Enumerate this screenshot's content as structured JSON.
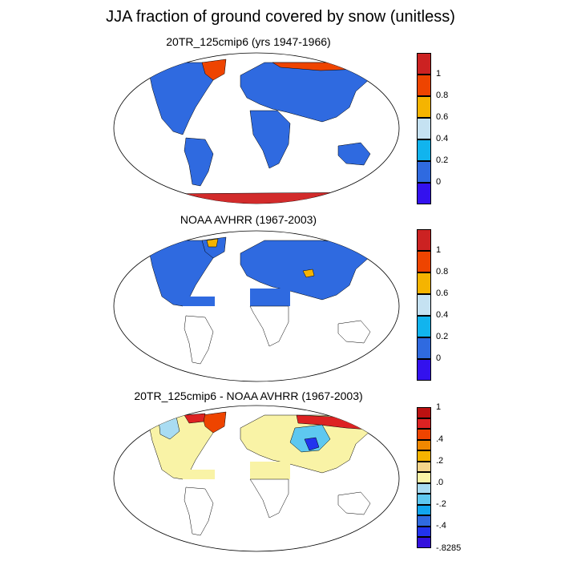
{
  "title": "JJA fraction of ground covered by snow (unitless)",
  "panels": [
    {
      "title": "20TR_125cmip6 (yrs 1947-1966)",
      "colorbar": {
        "colors": [
          "#3311ee",
          "#2f6ae0",
          "#11b4ee",
          "#c5e2f2",
          "#f5b400",
          "#ee4400",
          "#cc2222"
        ],
        "labels": [
          "0",
          "0.2",
          "0.4",
          "0.6",
          "0.8",
          "1"
        ]
      }
    },
    {
      "title": "NOAA AVHRR (1967-2003)",
      "colorbar": {
        "colors": [
          "#3311ee",
          "#2f6ae0",
          "#11b4ee",
          "#c5e2f2",
          "#f5b400",
          "#ee4400",
          "#cc2222"
        ],
        "labels": [
          "0",
          "0.2",
          "0.4",
          "0.6",
          "0.8",
          "1"
        ]
      }
    },
    {
      "title": "20TR_125cmip6 - NOAA AVHRR (1967-2003)",
      "colorbar": {
        "colors": [
          "#3311dd",
          "#2233ee",
          "#2f6ae0",
          "#11a6ee",
          "#5ec8f0",
          "#a9dcf2",
          "#f9f3a6",
          "#f5d58a",
          "#f5b400",
          "#f08800",
          "#ee4400",
          "#dd2222",
          "#bb1111"
        ],
        "labels": [
          "-.8285",
          "-.4",
          "-.2",
          ".0",
          ".2",
          ".4",
          "1"
        ]
      }
    }
  ],
  "colors": {
    "ocean": "#ffffff",
    "land_low": "#2f6ae0",
    "snow_full": "#d22b2b",
    "diff_neutral": "#f9f3a6"
  }
}
